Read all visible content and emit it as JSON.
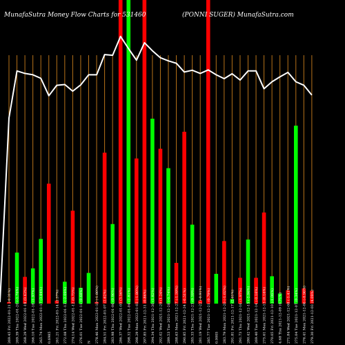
{
  "header": {
    "left_title": "MunafaSutra  Money Flow  Charts for 531460",
    "right_title": "(PONNI SUGER) MunafaSutra.com"
  },
  "chart_data": {
    "type": "bar",
    "title": "MunafaSutra  Money Flow  Charts for 531460",
    "subtitle": "(PONNI SUGER) MunafaSutra.com",
    "grid": true,
    "bar_colors": {
      "up": "#00ff00",
      "down": "#ff0000"
    },
    "line_color": "#ffffff",
    "grid_color": "#b8731a",
    "background": "#000000",
    "categories": [
      "269.45 Fri 2022-01-21 (-0.31%)",
      "269.39 Thu 2022-01-20 (-1.76%)",
      "268.29 Wed 2022-01-19 (0.63%)",
      "266.10 Tue 2022-01-18 (1.97%)",
      "265.74 Mon 2022-01-17 (3.84%)",
      "0.6985",
      "261.21 Fri 2022-01-14 (1.37%)",
      "272.08 Thu 2022-01-13 (-2.09%)",
      "274.14 Wed 2022-01-12 (0.75%)",
      "276.01 Tue 2022-01-11 (0.68%)",
      "N",
      "278.46 Mon 2022-01-10 (-1.80%)",
      "284.51 Fri 2022-01-07 (2.62%)",
      "283.98 Thu 2022-01-06 (0.96%)",
      "286.37 Wed 2022-01-05 (3.56%)",
      "298.32 Tue 2022-01-04 (2.81%)",
      "298.29 Mon 2022-01-03 (-1.80%)",
      "297.85 Fri 2021-12-31 (0.86%)",
      "294.34 Thu 2021-12-30 (1.82%)",
      "292.02 Wed 2021-12-29 (1.24%)",
      "289.53 Tue 2021-12-28 (-0.74%)",
      "288.63 Mon 2021-12-27 (-1.59%)",
      "290.85 Fri 2021-12-24 (-0.51%)",
      "285.33 Thu 2021-12-23 (0.59%)",
      "281.19 Wed 2021-12-22 (-0.91%)",
      "285.77 Tue 2021-12-21 (0.79%)",
      "0.0005",
      "283.79 Mon 2021-12-20 (-1.02%)",
      "291.81 Fri 2021-12-17 (2.41%)",
      "291.73 Thu 2021-12-16 (1.97%)",
      "280.42 Wed 2021-12-15 (-2.96%)",
      "269.40 Tue 2021-12-14 (-0.16%)",
      "275.61 Mon 2021-12-13 (0.16%)",
      "270.05 Fri 2021-12-10 (-1.06%)",
      "4.68 Thu 2021-12-09 (0.71%)",
      "271.84 Wed 2021-12-08 (-1.41%)",
      "275.04 Tue 2021-12-07 (0.34%)",
      "276.41 Mon 2021-12-06 (-0.96%)",
      "279.30 Fri 2021-12-03 (4.09%)"
    ],
    "up": [
      false,
      true,
      false,
      true,
      true,
      false,
      false,
      true,
      false,
      true,
      true,
      false,
      false,
      true,
      false,
      true,
      false,
      false,
      true,
      false,
      true,
      false,
      false,
      true,
      false,
      false,
      true,
      false,
      true,
      false,
      true,
      false,
      false,
      true,
      true,
      false,
      true,
      false,
      false
    ],
    "flow_values": [
      0.5,
      16.8,
      8.8,
      11.6,
      21.3,
      39.5,
      1.0,
      7.2,
      30.6,
      5.2,
      10.1,
      0.5,
      49.7,
      26.2,
      100,
      100,
      47.8,
      100,
      60.9,
      51.0,
      44.6,
      13.4,
      56.6,
      26.0,
      1.0,
      100,
      9.8,
      20.6,
      1.5,
      8.5,
      21.1,
      8.5,
      30.0,
      9.0,
      3.3,
      4.4,
      58.6,
      5.0,
      4.2
    ],
    "price_index": [
      65.0,
      98.1,
      97.4,
      97.0,
      96.0,
      91.0,
      94.0,
      94.2,
      92.3,
      94.1,
      97.0,
      97.0,
      102.8,
      102.6,
      108.0,
      104.5,
      101.2,
      106.2,
      103.9,
      101.9,
      101.0,
      100.3,
      97.8,
      98.3,
      97.4,
      98.4,
      97.0,
      95.9,
      97.3,
      95.5,
      98.1,
      98.1,
      93.0,
      95.0,
      96.4,
      97.7,
      95.0,
      94.0,
      91.2
    ],
    "ylim": [
      0,
      100
    ]
  }
}
